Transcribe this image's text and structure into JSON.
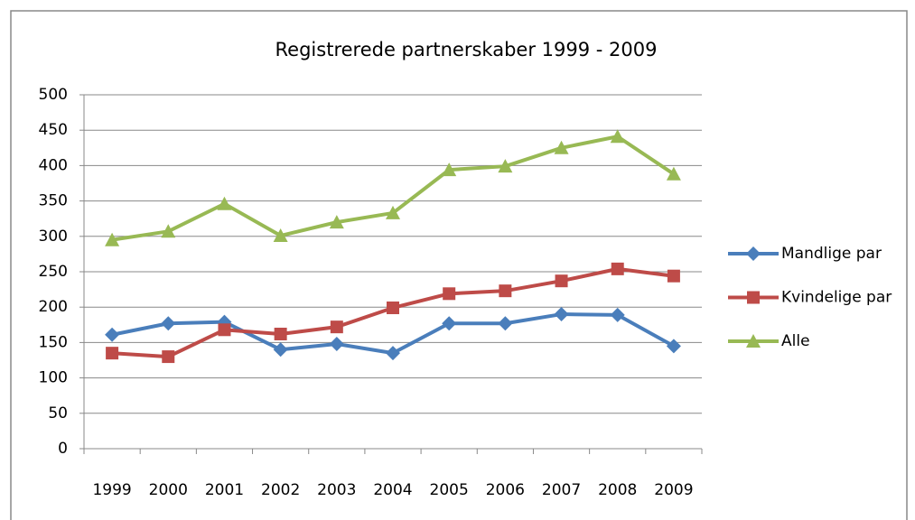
{
  "chart_data": {
    "type": "line",
    "title": "Registrerede partnerskaber 1999 - 2009",
    "categories": [
      "1999",
      "2000",
      "2001",
      "2002",
      "2003",
      "2004",
      "2005",
      "2006",
      "2007",
      "2008",
      "2009"
    ],
    "series": [
      {
        "name": "Mandlige par",
        "color": "#4a7ebb",
        "marker": "diamond",
        "values": [
          161,
          177,
          179,
          140,
          148,
          135,
          177,
          177,
          190,
          189,
          145
        ]
      },
      {
        "name": "Kvindelige par",
        "color": "#be4b48",
        "marker": "square",
        "values": [
          135,
          130,
          168,
          162,
          172,
          199,
          219,
          223,
          237,
          254,
          244
        ]
      },
      {
        "name": "Alle",
        "color": "#98b954",
        "marker": "triangle",
        "values": [
          295,
          307,
          346,
          301,
          320,
          333,
          394,
          399,
          425,
          441,
          388
        ]
      }
    ],
    "ylim": [
      0,
      500
    ],
    "yticks": [
      0,
      50,
      100,
      150,
      200,
      250,
      300,
      350,
      400,
      450,
      500
    ],
    "grid": true,
    "legend": "right"
  }
}
